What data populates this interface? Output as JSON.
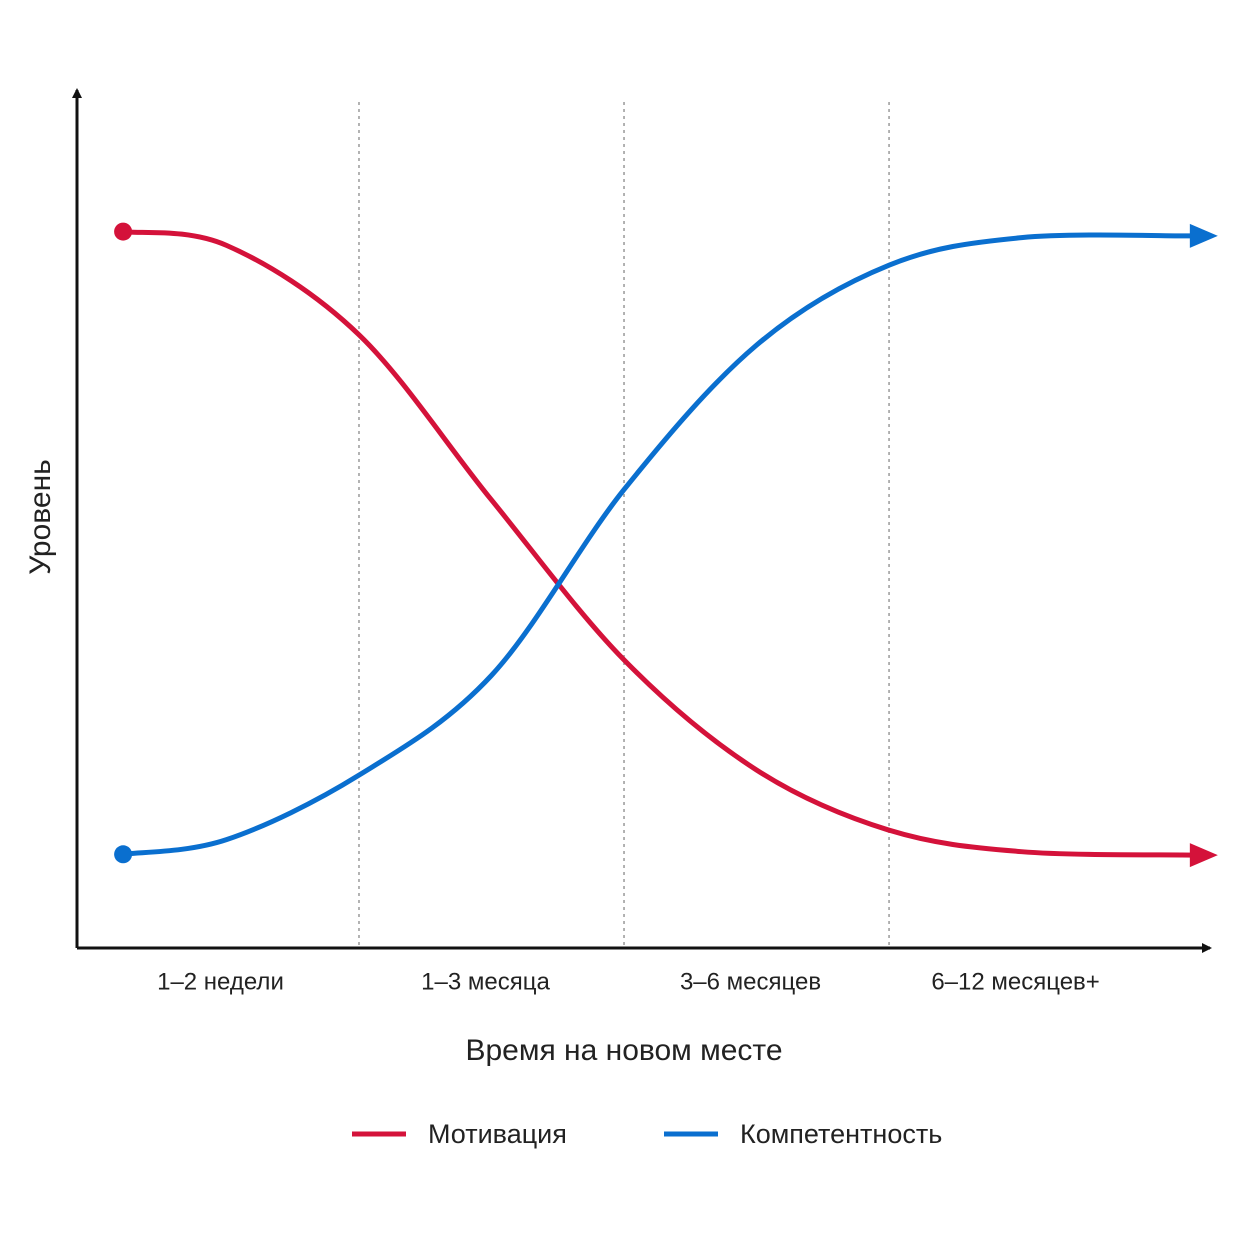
{
  "chart_data": {
    "type": "line",
    "x_label": "Время на новом месте",
    "y_label": "Уровень",
    "categories": [
      "1–2 недели",
      "1–3 месяца",
      "3–6 месяцев",
      "6–12 месяцев+"
    ],
    "x": [
      0.11,
      0.5,
      1,
      1.5,
      2,
      2.5,
      3,
      3.5,
      4.15
    ],
    "series": [
      {
        "name": "Мотивация",
        "color": "#d4123a",
        "values": [
          83.3,
          81.7,
          71.3,
          52.1,
          33.5,
          20.7,
          13.7,
          11.2,
          10.8
        ]
      },
      {
        "name": "Компетентность",
        "color": "#0a6fcf",
        "values": [
          10.9,
          12.6,
          20.1,
          31.7,
          53.3,
          70.1,
          79.4,
          82.6,
          82.8
        ]
      }
    ],
    "xlim": [
      -0.064,
      4.211
    ],
    "ylim": [
      0,
      100
    ]
  }
}
